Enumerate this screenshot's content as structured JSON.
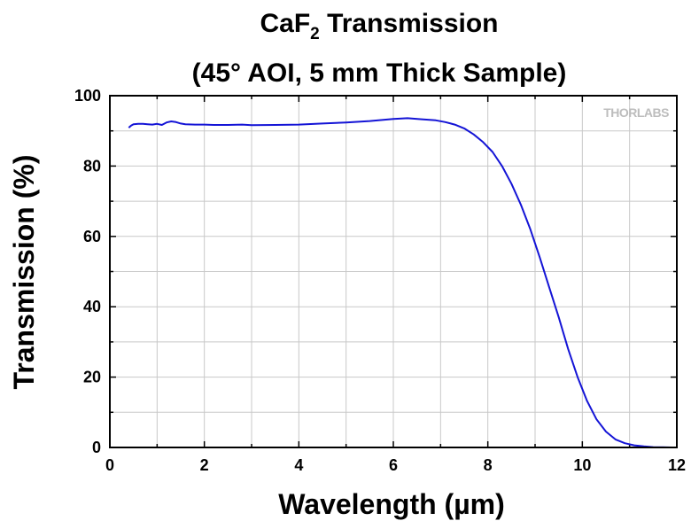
{
  "chart_data": {
    "type": "line",
    "title_line1_main": "CaF",
    "title_line1_sub": "2",
    "title_line1_rest": " Transmission",
    "title_line2": "(45° AOI, 5 mm Thick Sample)",
    "xlabel": "Wavelength (µm)",
    "ylabel": "Transmission (%)",
    "xlim": [
      0,
      12
    ],
    "ylim": [
      0,
      100
    ],
    "xticks": [
      "0",
      "2",
      "4",
      "6",
      "8",
      "10",
      "12"
    ],
    "yticks": [
      "0",
      "20",
      "40",
      "60",
      "80",
      "100"
    ],
    "grid": true,
    "watermark": "THORLABS",
    "series": [
      {
        "color": "#1414d6",
        "x": [
          0.4,
          0.45,
          0.5,
          0.6,
          0.7,
          0.8,
          0.9,
          1.0,
          1.1,
          1.2,
          1.3,
          1.4,
          1.5,
          1.6,
          1.8,
          2.0,
          2.2,
          2.5,
          2.8,
          3.0,
          3.5,
          4.0,
          4.5,
          5.0,
          5.5,
          6.0,
          6.3,
          6.6,
          6.9,
          7.1,
          7.3,
          7.5,
          7.7,
          7.9,
          8.1,
          8.3,
          8.5,
          8.7,
          8.9,
          9.1,
          9.3,
          9.5,
          9.7,
          9.9,
          10.1,
          10.3,
          10.5,
          10.7,
          10.9,
          11.1,
          11.3,
          11.5,
          11.7,
          11.9,
          12.0
        ],
        "y": [
          90.9,
          91.5,
          91.9,
          92.0,
          92.0,
          91.9,
          91.8,
          92.0,
          91.7,
          92.4,
          92.7,
          92.5,
          92.1,
          91.9,
          91.8,
          91.8,
          91.7,
          91.7,
          91.8,
          91.6,
          91.7,
          91.8,
          92.1,
          92.4,
          92.8,
          93.4,
          93.6,
          93.3,
          93.0,
          92.5,
          91.8,
          90.7,
          89.0,
          86.8,
          84.0,
          80.0,
          75.0,
          69.0,
          62.0,
          54.0,
          45.5,
          37.0,
          28.0,
          20.0,
          13.2,
          8.0,
          4.5,
          2.3,
          1.2,
          0.6,
          0.3,
          0.1,
          0.05,
          0.0,
          0.0
        ]
      }
    ]
  }
}
